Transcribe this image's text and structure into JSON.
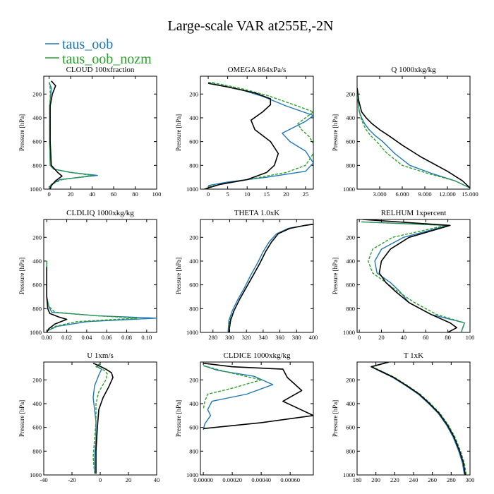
{
  "figure": {
    "title": "Large-scale VAR at255E,-2N",
    "legend": [
      {
        "name": "taus_oob",
        "color": "#1f77b4"
      },
      {
        "name": "taus_oob_nozm",
        "color": "#2ca02c"
      }
    ],
    "black_line_color": "#000000"
  },
  "chart_data": [
    {
      "type": "line",
      "title": "CLOUD  100xfraction",
      "ylabel": "Pressure [hPa]",
      "xlim": [
        -5,
        100
      ],
      "ylim": [
        1000,
        50
      ],
      "xticks": [
        0,
        20,
        40,
        60,
        80,
        100
      ],
      "xticklabels": [
        "0",
        "20",
        "40",
        "60",
        "80",
        "100"
      ],
      "yticks": [
        200,
        400,
        600,
        800,
        1000
      ],
      "series": [
        {
          "color": "#1f77b4",
          "style": "solid",
          "x": [
            0,
            2,
            1,
            0.5,
            0.5,
            0.5,
            1,
            4,
            20,
            45,
            10,
            2,
            0
          ],
          "y": [
            100,
            150,
            250,
            300,
            400,
            600,
            800,
            830,
            860,
            885,
            920,
            960,
            990
          ]
        },
        {
          "color": "#2ca02c",
          "style": "dashed",
          "x": [
            0,
            1,
            1,
            0.5,
            0.5,
            0.5,
            1,
            5,
            25,
            40,
            12,
            2,
            0
          ],
          "y": [
            100,
            150,
            250,
            300,
            400,
            600,
            800,
            835,
            865,
            885,
            920,
            960,
            990
          ]
        },
        {
          "color": "#000000",
          "style": "solid",
          "x": [
            2,
            6,
            3,
            1,
            1,
            1,
            2,
            8,
            12,
            6,
            2,
            1
          ],
          "y": [
            90,
            130,
            200,
            300,
            400,
            600,
            800,
            860,
            890,
            930,
            970,
            1000
          ]
        }
      ]
    },
    {
      "type": "line",
      "title": "OMEGA  864xPa/s",
      "ylabel": "Pressure [hPa]",
      "xlim": [
        -2,
        27
      ],
      "ylim": [
        1000,
        50
      ],
      "xticks": [
        0,
        5,
        10,
        15,
        20,
        25
      ],
      "xticklabels": [
        "0",
        "5",
        "10",
        "15",
        "20",
        "25"
      ],
      "yticks": [
        200,
        400,
        600,
        800,
        1000
      ],
      "series": [
        {
          "color": "#1f77b4",
          "style": "solid",
          "x": [
            1,
            2,
            8,
            14,
            20,
            27,
            25,
            22,
            19,
            21,
            25,
            27,
            25,
            15,
            5,
            0
          ],
          "y": [
            100,
            120,
            160,
            220,
            300,
            380,
            430,
            480,
            530,
            600,
            680,
            780,
            850,
            900,
            940,
            970
          ]
        },
        {
          "color": "#2ca02c",
          "style": "dashed",
          "x": [
            0,
            2,
            8,
            15,
            22,
            27,
            25,
            23,
            24,
            26,
            27,
            27,
            25,
            20,
            10,
            0
          ],
          "y": [
            100,
            110,
            150,
            210,
            290,
            350,
            400,
            450,
            500,
            560,
            620,
            700,
            800,
            860,
            920,
            980
          ]
        },
        {
          "color": "#000000",
          "style": "solid",
          "x": [
            0,
            5,
            12,
            16,
            16,
            14,
            11,
            12,
            16,
            18,
            17,
            15,
            10,
            3,
            -1
          ],
          "y": [
            110,
            140,
            190,
            240,
            290,
            350,
            420,
            500,
            600,
            700,
            800,
            860,
            920,
            960,
            1000
          ]
        }
      ]
    },
    {
      "type": "line",
      "title": "Q  1000xkg/kg",
      "ylabel": "Pressure [hPa]",
      "xlim": [
        0,
        15
      ],
      "ylim": [
        1000,
        50
      ],
      "xticks": [
        3,
        6,
        9,
        12,
        15
      ],
      "xticklabels": [
        "3.000",
        "6.000",
        "9.000",
        "12.000",
        "15.000"
      ],
      "yticks": [
        200,
        400,
        600,
        800,
        1000
      ],
      "series": [
        {
          "color": "#1f77b4",
          "style": "solid",
          "x": [
            0.02,
            0.1,
            0.3,
            0.6,
            1,
            1.6,
            2.4,
            3.4,
            5,
            7,
            10,
            13,
            15
          ],
          "y": [
            150,
            250,
            350,
            400,
            450,
            500,
            550,
            600,
            700,
            800,
            870,
            930,
            990
          ]
        },
        {
          "color": "#2ca02c",
          "style": "dashed",
          "x": [
            0.02,
            0.1,
            0.3,
            0.5,
            0.8,
            1.2,
            1.8,
            2.6,
            4,
            6,
            9.5,
            13,
            15
          ],
          "y": [
            150,
            250,
            350,
            400,
            450,
            500,
            550,
            600,
            700,
            800,
            870,
            930,
            990
          ]
        },
        {
          "color": "#000000",
          "style": "solid",
          "x": [
            0.02,
            0.2,
            0.6,
            1.2,
            2,
            3,
            4.2,
            6,
            8.5,
            12,
            14,
            15
          ],
          "y": [
            150,
            250,
            350,
            400,
            450,
            500,
            550,
            630,
            730,
            850,
            930,
            990
          ]
        }
      ]
    },
    {
      "type": "line",
      "title": "CLDLIQ  1000xkg/kg",
      "ylabel": "Pressure [hPa]",
      "xlim": [
        -0.003,
        0.11
      ],
      "ylim": [
        1000,
        50
      ],
      "xticks": [
        0,
        0.02,
        0.04,
        0.06,
        0.08,
        0.1
      ],
      "xticklabels": [
        "0.00",
        "0.02",
        "0.04",
        "0.06",
        "0.08",
        "0.10"
      ],
      "yticks": [
        200,
        400,
        600,
        800,
        1000
      ],
      "series": [
        {
          "color": "#1f77b4",
          "style": "solid",
          "x": [
            0,
            0,
            0,
            0,
            0.002,
            0.005,
            0.05,
            0.11,
            0.04,
            0.01,
            0
          ],
          "y": [
            400,
            500,
            600,
            700,
            780,
            830,
            860,
            880,
            910,
            950,
            990
          ]
        },
        {
          "color": "#2ca02c",
          "style": "dashed",
          "x": [
            0,
            0,
            0,
            0,
            0.002,
            0.008,
            0.05,
            0.09,
            0.03,
            0.008,
            0
          ],
          "y": [
            400,
            500,
            600,
            700,
            780,
            830,
            860,
            880,
            910,
            950,
            990
          ]
        },
        {
          "color": "#000000",
          "style": "solid",
          "x": [
            0,
            0,
            0,
            0.001,
            0.003,
            0.012,
            0.02,
            0.008,
            0.002,
            0
          ],
          "y": [
            450,
            600,
            700,
            800,
            840,
            870,
            890,
            930,
            970,
            1000
          ]
        }
      ]
    },
    {
      "type": "line",
      "title": "THETA  1.0xK",
      "ylabel": "Pressure [hPa]",
      "xlim": [
        265,
        400
      ],
      "ylim": [
        1000,
        50
      ],
      "xticks": [
        280,
        300,
        320,
        340,
        360,
        380,
        400
      ],
      "xticklabels": [
        "280",
        "300",
        "320",
        "340",
        "360",
        "380",
        "400"
      ],
      "yticks": [
        200,
        400,
        600,
        800,
        1000
      ],
      "series": [
        {
          "color": "#1f77b4",
          "style": "solid",
          "x": [
            298,
            299,
            303,
            310,
            318,
            325,
            333,
            340,
            347,
            356,
            370,
            390,
            400
          ],
          "y": [
            1000,
            900,
            820,
            720,
            620,
            520,
            420,
            320,
            240,
            170,
            125,
            100,
            90
          ]
        },
        {
          "color": "#2ca02c",
          "style": "dashed",
          "x": [
            299,
            300,
            305,
            312,
            320,
            328,
            336,
            343,
            350,
            358,
            372,
            390,
            400
          ],
          "y": [
            1000,
            900,
            820,
            720,
            620,
            520,
            420,
            320,
            240,
            170,
            125,
            100,
            90
          ]
        },
        {
          "color": "#000000",
          "style": "solid",
          "x": [
            299,
            301,
            305,
            312,
            320,
            328,
            336,
            343,
            350,
            358,
            372,
            390,
            400
          ],
          "y": [
            1000,
            900,
            820,
            720,
            620,
            520,
            420,
            320,
            240,
            170,
            125,
            100,
            90
          ]
        }
      ]
    },
    {
      "type": "line",
      "title": "RELHUM  1xpercent",
      "ylabel": "Pressure [hPa]",
      "xlim": [
        -2,
        100
      ],
      "ylim": [
        1000,
        50
      ],
      "xticks": [
        0,
        20,
        40,
        60,
        80,
        100
      ],
      "xticklabels": [
        "0",
        "20",
        "40",
        "60",
        "80",
        "100"
      ],
      "yticks": [
        200,
        400,
        600,
        800,
        1000
      ],
      "series": [
        {
          "color": "#1f77b4",
          "style": "solid",
          "x": [
            2,
            80,
            40,
            20,
            14,
            16,
            28,
            36,
            45,
            65,
            95,
            92
          ],
          "y": [
            70,
            100,
            200,
            300,
            400,
            500,
            580,
            650,
            750,
            850,
            920,
            1000
          ]
        },
        {
          "color": "#2ca02c",
          "style": "dashed",
          "x": [
            2,
            78,
            30,
            12,
            8,
            12,
            24,
            34,
            50,
            70,
            95,
            92
          ],
          "y": [
            70,
            100,
            200,
            300,
            400,
            500,
            580,
            650,
            750,
            850,
            920,
            1000
          ]
        },
        {
          "color": "#000000",
          "style": "solid",
          "x": [
            3,
            82,
            45,
            28,
            20,
            18,
            24,
            32,
            45,
            65,
            82,
            88,
            80
          ],
          "y": [
            50,
            100,
            200,
            300,
            400,
            500,
            580,
            650,
            750,
            850,
            920,
            960,
            1000
          ]
        }
      ]
    },
    {
      "type": "line",
      "title": "U  1xm/s",
      "ylabel": "Pressure [hPa]",
      "xlim": [
        -40,
        40
      ],
      "ylim": [
        1000,
        50
      ],
      "xticks": [
        -40,
        -20,
        0,
        20,
        40
      ],
      "xticklabels": [
        "-40",
        "-20",
        "0",
        "20",
        "40"
      ],
      "yticks": [
        200,
        400,
        600,
        800,
        1000
      ],
      "series": [
        {
          "color": "#1f77b4",
          "style": "solid",
          "x": [
            0,
            -2,
            1,
            -1,
            -4,
            -5,
            -4,
            -3,
            -3,
            -4,
            -4
          ],
          "y": [
            60,
            90,
            110,
            160,
            250,
            350,
            450,
            550,
            700,
            850,
            990
          ]
        },
        {
          "color": "#2ca02c",
          "style": "dashed",
          "x": [
            0,
            -3,
            3,
            5,
            4,
            -1,
            -3,
            -3,
            -4,
            -5,
            -4
          ],
          "y": [
            60,
            90,
            120,
            150,
            200,
            300,
            400,
            550,
            700,
            850,
            990
          ]
        },
        {
          "color": "#000000",
          "style": "solid",
          "x": [
            -5,
            -1,
            4,
            8,
            9,
            6,
            2,
            -1,
            -2,
            -3,
            -3
          ],
          "y": [
            60,
            80,
            110,
            140,
            180,
            260,
            350,
            450,
            600,
            800,
            990
          ]
        }
      ]
    },
    {
      "type": "line",
      "title": "CLDICE  1000xkg/kg",
      "ylabel": "Pressure [hPa]",
      "xlim": [
        -2e-05,
        0.00076
      ],
      "ylim": [
        1000,
        50
      ],
      "xticks": [
        0,
        0.0002,
        0.0004,
        0.0006
      ],
      "xticklabels": [
        "0.00000",
        "0.00020",
        "0.00040",
        "0.00060"
      ],
      "yticks": [
        200,
        400,
        600,
        800,
        1000
      ],
      "series": [
        {
          "color": "#1f77b4",
          "style": "solid",
          "x": [
            0,
            0.0001,
            0.00035,
            0.00048,
            0.0003,
            6e-05,
            3e-05,
            5e-05,
            1e-05,
            0
          ],
          "y": [
            80,
            120,
            170,
            240,
            320,
            380,
            450,
            500,
            570,
            620
          ]
        },
        {
          "color": "#2ca02c",
          "style": "dashed",
          "x": [
            0,
            0.00015,
            0.0004,
            0.0002,
            3e-05,
            1e-05,
            0
          ],
          "y": [
            80,
            130,
            200,
            270,
            320,
            380,
            450
          ]
        },
        {
          "color": "#000000",
          "style": "solid",
          "x": [
            0,
            0.0002,
            0.00055,
            0.00058,
            0.00068,
            0.00055,
            0.00062,
            0.00076,
            0.0004,
            0
          ],
          "y": [
            60,
            90,
            110,
            180,
            290,
            380,
            420,
            500,
            560,
            610
          ]
        }
      ]
    },
    {
      "type": "line",
      "title": "T  1xK",
      "ylabel": "Pressure [hPa]",
      "xlim": [
        180,
        300
      ],
      "ylim": [
        1000,
        50
      ],
      "xticks": [
        180,
        200,
        220,
        240,
        260,
        280,
        300
      ],
      "xticklabels": [
        "180",
        "200",
        "220",
        "240",
        "260",
        "280",
        "300"
      ],
      "yticks": [
        200,
        400,
        600,
        800,
        1000
      ],
      "series": [
        {
          "color": "#1f77b4",
          "style": "solid",
          "x": [
            213,
            195,
            205,
            218,
            232,
            245,
            256,
            266,
            275,
            282,
            288,
            292,
            294
          ],
          "y": [
            50,
            90,
            130,
            180,
            250,
            320,
            400,
            480,
            580,
            680,
            800,
            900,
            1000
          ]
        },
        {
          "color": "#2ca02c",
          "style": "dashed",
          "x": [
            214,
            196,
            207,
            220,
            234,
            247,
            258,
            268,
            277,
            284,
            290,
            294,
            296
          ],
          "y": [
            50,
            90,
            130,
            180,
            250,
            320,
            400,
            480,
            580,
            680,
            800,
            900,
            1000
          ]
        },
        {
          "color": "#000000",
          "style": "solid",
          "x": [
            214,
            195,
            206,
            219,
            233,
            246,
            257,
            267,
            276,
            283,
            289,
            293,
            295
          ],
          "y": [
            50,
            90,
            130,
            180,
            250,
            320,
            400,
            480,
            580,
            680,
            800,
            900,
            1000
          ]
        }
      ]
    }
  ]
}
